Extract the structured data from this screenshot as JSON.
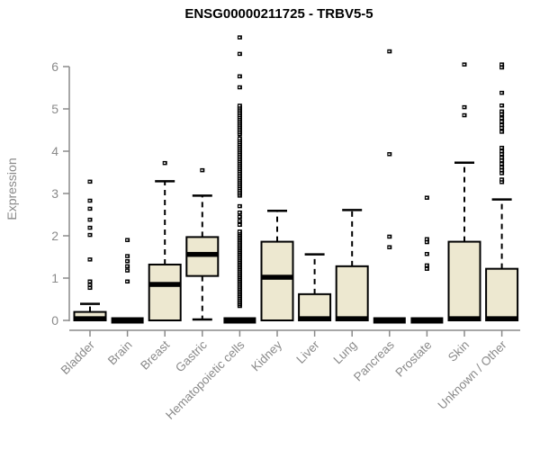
{
  "chart_data": {
    "type": "boxplot",
    "title": "ENSG00000211725 - TRBV5-5",
    "ylabel": "Expression",
    "xlabel": "",
    "ylim": [
      0,
      6.8
    ],
    "yticks": [
      0,
      1,
      2,
      3,
      4,
      5,
      6
    ],
    "grid": false,
    "legend": null,
    "colors": {
      "box_fill": "#EDE8D0",
      "box_stroke": "#000000",
      "axis": "#8a8a8a",
      "outlier": "#000000"
    },
    "categories": [
      "Bladder",
      "Brain",
      "Breast",
      "Gastric",
      "Hematopoietic cells",
      "Kidney",
      "Liver",
      "Lung",
      "Pancreas",
      "Prostate",
      "Skin",
      "Unknown / Other"
    ],
    "boxes": [
      {
        "category": "Bladder",
        "collapsed": false,
        "q1": 0,
        "median": 0.04,
        "q3": 0.2,
        "whisker_low": 0,
        "whisker_high": 0.39,
        "outliers": [
          0.77,
          0.84,
          0.92,
          1.44,
          2.02,
          2.19,
          2.38,
          2.64,
          2.83,
          3.28
        ],
        "outlier_dense": []
      },
      {
        "category": "Brain",
        "collapsed": true,
        "q1": 0,
        "median": 0,
        "q3": 0.05,
        "whisker_low": 0,
        "whisker_high": 0.05,
        "outliers": [
          0.92,
          1.18,
          1.28,
          1.4,
          1.52,
          1.9
        ],
        "outlier_dense": []
      },
      {
        "category": "Breast",
        "collapsed": false,
        "q1": 0,
        "median": 0.85,
        "q3": 1.32,
        "whisker_low": 0,
        "whisker_high": 3.29,
        "outliers": [
          3.72
        ],
        "outlier_dense": []
      },
      {
        "category": "Gastric",
        "collapsed": false,
        "q1": 1.05,
        "median": 1.56,
        "q3": 1.97,
        "whisker_low": 0.02,
        "whisker_high": 2.95,
        "outliers": [
          3.55
        ],
        "outlier_dense": []
      },
      {
        "category": "Hematopoietic cells",
        "collapsed": true,
        "q1": 0,
        "median": 0,
        "q3": 0.05,
        "whisker_low": 0,
        "whisker_high": 0.05,
        "outliers": [
          2.26,
          2.35,
          2.45,
          2.55,
          2.7,
          5.51,
          5.77,
          6.3,
          6.69
        ],
        "outlier_dense": [
          {
            "from": 0.34,
            "to": 2.1,
            "step": 0.04
          },
          {
            "from": 2.95,
            "to": 4.3,
            "step": 0.045
          },
          {
            "from": 4.4,
            "to": 5.08,
            "step": 0.045
          }
        ]
      },
      {
        "category": "Kidney",
        "collapsed": false,
        "q1": 0,
        "median": 1.02,
        "q3": 1.86,
        "whisker_low": 0,
        "whisker_high": 2.59,
        "outliers": [],
        "outlier_dense": []
      },
      {
        "category": "Liver",
        "collapsed": false,
        "q1": 0,
        "median": 0.04,
        "q3": 0.62,
        "whisker_low": 0,
        "whisker_high": 1.56,
        "outliers": [],
        "outlier_dense": []
      },
      {
        "category": "Lung",
        "collapsed": false,
        "q1": 0,
        "median": 0.04,
        "q3": 1.28,
        "whisker_low": 0,
        "whisker_high": 2.61,
        "outliers": [],
        "outlier_dense": []
      },
      {
        "category": "Pancreas",
        "collapsed": true,
        "q1": 0,
        "median": 0,
        "q3": 0.05,
        "whisker_low": 0,
        "whisker_high": 0.05,
        "outliers": [
          1.73,
          1.98,
          3.93,
          6.36
        ],
        "outlier_dense": []
      },
      {
        "category": "Prostate",
        "collapsed": true,
        "q1": 0,
        "median": 0,
        "q3": 0.05,
        "whisker_low": 0,
        "whisker_high": 0.05,
        "outliers": [
          1.22,
          1.3,
          1.57,
          1.85,
          1.92,
          2.9
        ],
        "outlier_dense": []
      },
      {
        "category": "Skin",
        "collapsed": false,
        "q1": 0,
        "median": 0.04,
        "q3": 1.86,
        "whisker_low": 0,
        "whisker_high": 3.73,
        "outliers": [
          4.85,
          5.04,
          6.05
        ],
        "outlier_dense": []
      },
      {
        "category": "Unknown / Other",
        "collapsed": false,
        "q1": 0,
        "median": 0.04,
        "q3": 1.22,
        "whisker_low": 0,
        "whisker_high": 2.86,
        "outliers": [
          3.27,
          3.33,
          3.48,
          3.55,
          3.62,
          3.7,
          3.78,
          3.85,
          3.93,
          4.0,
          4.08,
          4.46,
          4.55,
          4.62,
          4.7,
          4.78,
          4.87,
          4.94,
          5.08,
          5.38,
          5.98,
          6.05
        ],
        "outlier_dense": []
      }
    ]
  }
}
